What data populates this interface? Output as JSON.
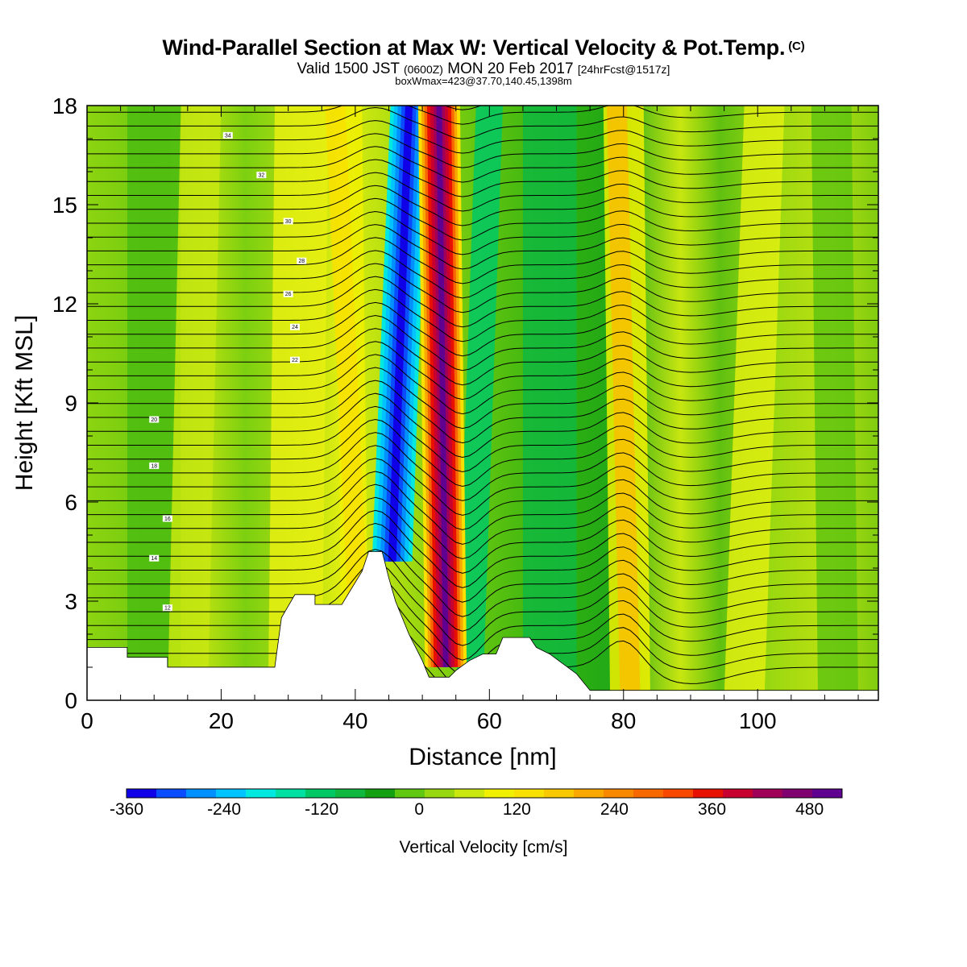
{
  "header": {
    "title": "Wind-Parallel Section at Max W: Vertical Velocity & Pot.Temp.",
    "title_mark": "(C)",
    "valid_prefix": "Valid 1500 JST",
    "valid_zulu": "(0600Z)",
    "valid_date": "MON 20 Feb 2017",
    "forecast": "[24hrFcst@1517z]",
    "box_info": "boxWmax=423@37.70,140.45,1398m"
  },
  "chart_data": {
    "type": "heatmap",
    "xlabel": "Distance [nm]",
    "ylabel": "Height [Kft MSL]",
    "xlim": [
      0,
      118
    ],
    "ylim": [
      0,
      18
    ],
    "x_ticks": [
      0,
      20,
      40,
      60,
      80,
      100
    ],
    "y_ticks": [
      0,
      3,
      6,
      9,
      12,
      15,
      18
    ],
    "colorbar": {
      "title": "Vertical Velocity [cm/s]",
      "range": [
        -360,
        520
      ],
      "tick_labels": [
        "-360",
        "-240",
        "-120",
        "0",
        "120",
        "240",
        "360",
        "480"
      ],
      "tick_values": [
        -360,
        -240,
        -120,
        0,
        120,
        240,
        360,
        480
      ],
      "colors": [
        "#1000e8",
        "#0a4cff",
        "#0090ff",
        "#00c4ff",
        "#00e8e0",
        "#00e0a0",
        "#00c864",
        "#10b840",
        "#14a010",
        "#60c810",
        "#98d810",
        "#c8e810",
        "#f0f000",
        "#f8e000",
        "#f8c800",
        "#f8a800",
        "#f88800",
        "#f86800",
        "#f84800",
        "#e81000",
        "#c80030",
        "#a00058",
        "#800070",
        "#600090"
      ]
    },
    "velocity_features": [
      {
        "name": "downdraft core",
        "x_bottom": 44,
        "x_top": 48,
        "w_min": -360
      },
      {
        "name": "updraft core",
        "x_bottom": 52,
        "x_top": 52,
        "w_max": 423
      },
      {
        "name": "secondary updraft",
        "x_center": 81,
        "w_max": 200
      }
    ],
    "theta_contour_labels": [
      "34",
      "32",
      "30",
      "28",
      "26",
      "24",
      "22",
      "20",
      "18",
      "16",
      "14",
      "12"
    ],
    "terrain_kft": [
      [
        0,
        1.6
      ],
      [
        6,
        1.6
      ],
      [
        6,
        1.3
      ],
      [
        12,
        1.3
      ],
      [
        12,
        1.0
      ],
      [
        20,
        1.0
      ],
      [
        28,
        1.0
      ],
      [
        29,
        2.5
      ],
      [
        31,
        3.2
      ],
      [
        34,
        3.2
      ],
      [
        34,
        2.9
      ],
      [
        38,
        2.9
      ],
      [
        41,
        3.9
      ],
      [
        42,
        4.5
      ],
      [
        44,
        4.5
      ],
      [
        45,
        3.7
      ],
      [
        46,
        3.0
      ],
      [
        48,
        2.0
      ],
      [
        50,
        1.2
      ],
      [
        51,
        0.7
      ],
      [
        54,
        0.7
      ],
      [
        55,
        0.9
      ],
      [
        57,
        1.2
      ],
      [
        59,
        1.4
      ],
      [
        61,
        1.4
      ],
      [
        62,
        1.9
      ],
      [
        66,
        1.9
      ],
      [
        67,
        1.6
      ],
      [
        69,
        1.4
      ],
      [
        71,
        1.1
      ],
      [
        73,
        0.8
      ],
      [
        75,
        0.3
      ],
      [
        118,
        0.3
      ]
    ]
  }
}
